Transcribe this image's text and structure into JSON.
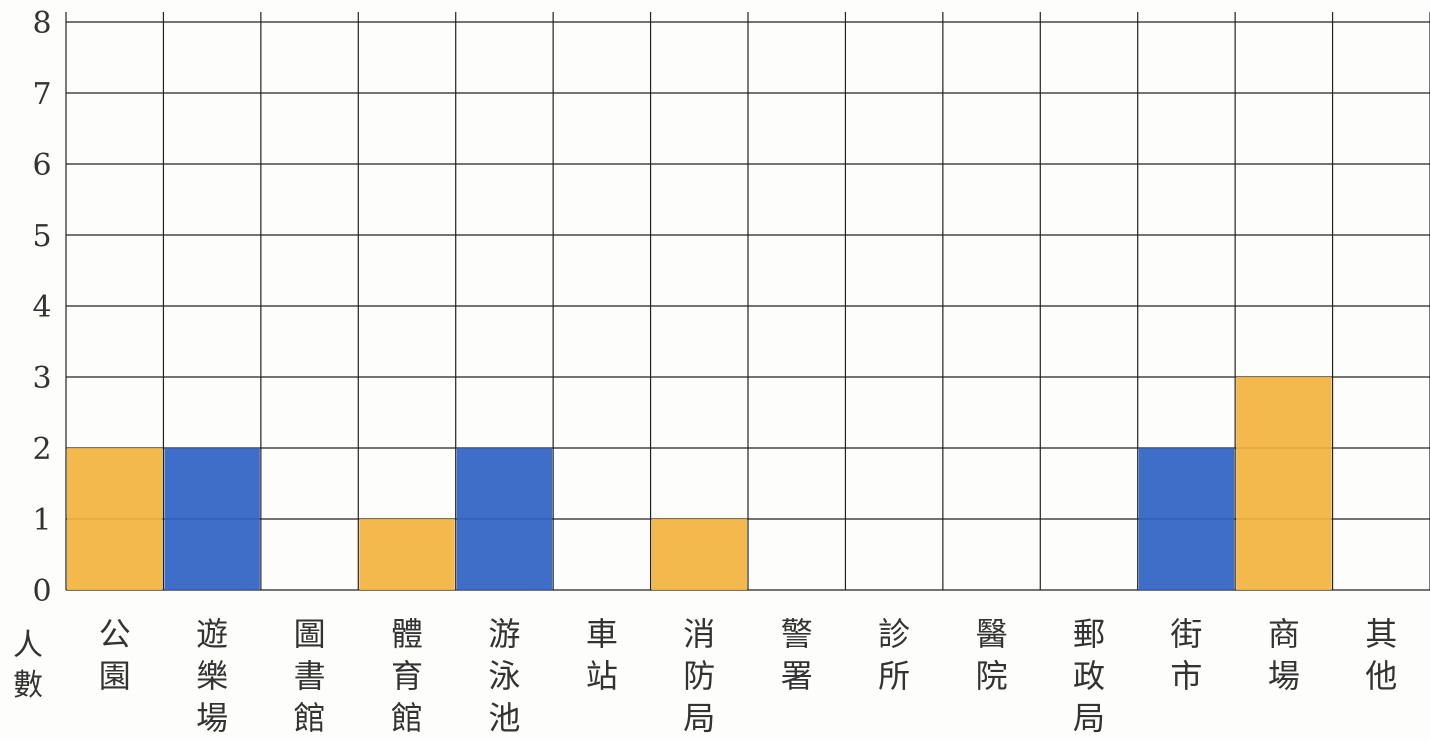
{
  "chart_data": {
    "type": "bar",
    "title": "",
    "xlabel": "",
    "ylabel": "人數",
    "ylim": [
      0,
      8
    ],
    "y_ticks": [
      "0",
      "1",
      "2",
      "3",
      "4",
      "5",
      "6",
      "7",
      "8"
    ],
    "grid": true,
    "categories": [
      "公園",
      "遊樂場",
      "圖書館",
      "體育館",
      "游泳池",
      "車站",
      "消防局",
      "警署",
      "診所",
      "醫院",
      "郵政局",
      "街市",
      "商場",
      "其他"
    ],
    "values": [
      2,
      2,
      0,
      1,
      2,
      0,
      1,
      0,
      0,
      0,
      0,
      2,
      3,
      0
    ],
    "bar_colors": [
      "#f3b33d",
      "#2f62c4",
      "#f3b33d",
      "#f3b33d",
      "#2f62c4",
      "#f3b33d",
      "#f3b33d",
      "#f3b33d",
      "#f3b33d",
      "#f3b33d",
      "#f3b33d",
      "#2f62c4",
      "#f3b33d",
      "#f3b33d"
    ],
    "colors": {
      "orange": "#f3b33d",
      "blue": "#2f62c4",
      "grid": "#222222",
      "text": "#333333"
    }
  }
}
